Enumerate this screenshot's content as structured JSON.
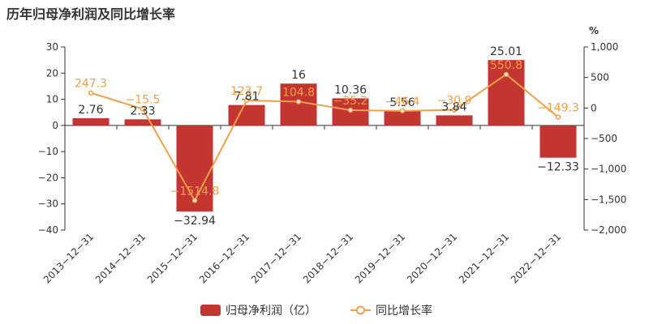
{
  "chart_data": {
    "type": "bar",
    "title": "历年归母净利润及同比增长率",
    "categories": [
      "2013-12-31",
      "2014-12-31",
      "2015-12-31",
      "2016-12-31",
      "2017-12-31",
      "2018-12-31",
      "2019-12-31",
      "2020-12-31",
      "2021-12-31",
      "2022-12-31"
    ],
    "series": [
      {
        "name": "归母净利润（亿）",
        "type": "bar",
        "axis": "left",
        "values": [
          2.76,
          2.33,
          -32.94,
          7.81,
          16,
          10.36,
          5.56,
          3.84,
          25.01,
          -12.33
        ],
        "labels": [
          "2.76",
          "2.33",
          "−32.94",
          "7.81",
          "16",
          "10.36",
          "5.56",
          "3.84",
          "25.01",
          "−12.33"
        ],
        "color": "#c23531"
      },
      {
        "name": "同比增长率",
        "type": "line",
        "axis": "right",
        "values": [
          247.3,
          -15.5,
          -1514.8,
          123.7,
          104.8,
          -35.2,
          -46.4,
          -30.9,
          550.8,
          -149.3
        ],
        "labels": [
          "247.3",
          "−15.5",
          "−1514.8",
          "123.7",
          "104.8",
          "−35.2",
          "−46.4",
          "−30.9",
          "550.8",
          "−149.3"
        ],
        "color": "#f0a04b"
      }
    ],
    "y_left": {
      "min": -40,
      "max": 30,
      "ticks": [
        30,
        20,
        10,
        0,
        -10,
        -20,
        -30,
        -40
      ],
      "tick_labels": [
        "30",
        "20",
        "10",
        "0",
        "−10",
        "−20",
        "−30",
        "−40"
      ]
    },
    "y_right": {
      "label": "%",
      "min": -2000,
      "max": 1000,
      "ticks": [
        1000,
        500,
        0,
        -500,
        -1000,
        -1500,
        -2000
      ],
      "tick_labels": [
        "1,000",
        "500",
        "0",
        "−500",
        "−1,000",
        "−1,500",
        "−2,000"
      ]
    },
    "grid": false,
    "legend": "bottom-center",
    "x_tick_labels": [
      "2013−12−31",
      "2014−12−31",
      "2015−12−31",
      "2016−12−31",
      "2017−12−31",
      "2018−12−31",
      "2019−12−31",
      "2020−12−31",
      "2021−12−31",
      "2022−12−31"
    ]
  }
}
